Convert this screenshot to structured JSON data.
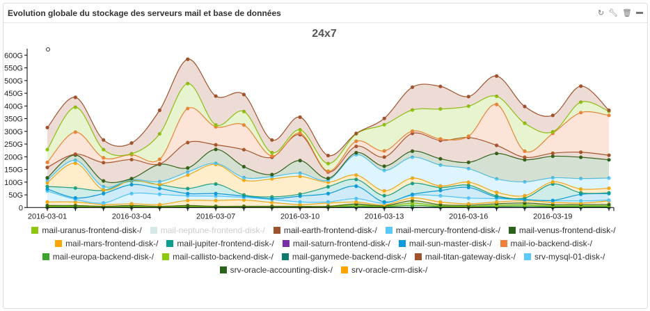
{
  "panel": {
    "title": "Evolution globale du stockage des serveurs mail et base de données",
    "icons": [
      "refresh-icon",
      "wrench-icon",
      "trash-icon",
      "minimize-icon"
    ]
  },
  "chart_data": {
    "type": "area",
    "stacked": true,
    "title": "24x7",
    "x": [
      "2016-03-01",
      "2016-03-02",
      "2016-03-03",
      "2016-03-04",
      "2016-03-05",
      "2016-03-06",
      "2016-03-07",
      "2016-03-08",
      "2016-03-09",
      "2016-03-10",
      "2016-03-11",
      "2016-03-12",
      "2016-03-13",
      "2016-03-14",
      "2016-03-15",
      "2016-03-16",
      "2016-03-17",
      "2016-03-18",
      "2016-03-19",
      "2016-03-20",
      "2016-03-21"
    ],
    "x_tick_labels": [
      "2016-03-01",
      "2016-03-04",
      "2016-03-07",
      "2016-03-10",
      "2016-03-13",
      "2016-03-16",
      "2016-03-19"
    ],
    "y_tick_labels": [
      "0",
      "50G",
      "100G",
      "150G",
      "200G",
      "250G",
      "300G",
      "350G",
      "400G",
      "450G",
      "500G",
      "550G",
      "600G"
    ],
    "ylim": [
      0,
      600
    ],
    "yunit": "G",
    "legend_position": "bottom",
    "series": [
      {
        "name": "mail-saturn-frontend-disk-/",
        "color": "#7b2fa5",
        "values": [
          0,
          0,
          0,
          0,
          0,
          0,
          0,
          0,
          0,
          0,
          0,
          0,
          0,
          0,
          0,
          0,
          0,
          0,
          0,
          0,
          0
        ]
      },
      {
        "name": "mail-ganymede-backend-disk-/",
        "color": "#0e7a6e",
        "values": [
          1,
          1,
          1,
          1,
          1,
          1,
          1,
          1,
          1,
          1,
          1,
          1,
          1,
          1,
          1,
          1,
          1,
          1,
          1,
          1,
          1
        ]
      },
      {
        "name": "mail-europa-backend-disk-/",
        "color": "#3aa52a",
        "values": [
          2,
          2,
          1,
          2,
          1,
          2,
          1,
          1,
          1,
          1,
          1,
          4,
          2,
          8,
          3,
          2,
          4,
          5,
          3,
          3,
          3
        ]
      },
      {
        "name": "mail-callisto-backend-disk-/",
        "color": "#8cc90b",
        "values": [
          2,
          2,
          1,
          2,
          1,
          2,
          1,
          1,
          1,
          1,
          1,
          4,
          2,
          8,
          3,
          2,
          4,
          5,
          3,
          3,
          3
        ]
      },
      {
        "name": "srv-oracle-accounting-disk-/",
        "color": "#2a6319",
        "values": [
          3,
          3,
          2,
          3,
          2,
          3,
          2,
          2,
          2,
          2,
          2,
          5,
          2,
          10,
          4,
          4,
          6,
          7,
          5,
          5,
          5
        ]
      },
      {
        "name": "srv-oracle-crm-disk-/",
        "color": "#ffa500",
        "values": [
          14,
          14,
          7,
          7,
          7,
          20,
          23,
          25,
          15,
          7,
          13,
          8,
          4,
          11,
          11,
          6,
          7,
          9,
          9,
          6,
          14
        ]
      },
      {
        "name": "srv-mysql-01-disk-/",
        "color": "#5ac8fa",
        "values": [
          43,
          10,
          6,
          40,
          40,
          18,
          17,
          10,
          12,
          10,
          4,
          13,
          7,
          10,
          24,
          22,
          13,
          3,
          6,
          8,
          3
        ]
      },
      {
        "name": "mail-sun-master-disk-/",
        "color": "#0f9ae0",
        "values": [
          8,
          6,
          37,
          35,
          23,
          9,
          10,
          5,
          3,
          23,
          33,
          49,
          4,
          4,
          21,
          42,
          6,
          2,
          1,
          26,
          26
        ]
      },
      {
        "name": "mail-jupiter-frontend-disk-/",
        "color": "#0a9e8e",
        "values": [
          10,
          39,
          13,
          15,
          15,
          20,
          38,
          5,
          7,
          8,
          27,
          27,
          25,
          43,
          12,
          9,
          5,
          6,
          65,
          6,
          3
        ]
      },
      {
        "name": "mail-mars-frontend-disk-/",
        "color": "#ffa500",
        "values": [
          15,
          98,
          2,
          3,
          2,
          53,
          77,
          58,
          71,
          70,
          18,
          17,
          19,
          21,
          6,
          12,
          14,
          9,
          8,
          15,
          18
        ]
      },
      {
        "name": "mail-mercury-frontend-disk-/",
        "color": "#5ac8fa",
        "values": [
          10,
          11,
          12,
          2,
          10,
          12,
          4,
          10,
          9,
          12,
          8,
          80,
          80,
          82,
          82,
          53,
          53,
          54,
          16,
          41,
          40
        ]
      },
      {
        "name": "mail-venus-frontend-disk-/",
        "color": "#2a6319",
        "values": [
          9,
          21,
          23,
          4,
          68,
          16,
          55,
          43,
          8,
          50,
          7,
          8,
          17,
          24,
          25,
          25,
          100,
          87,
          85,
          84,
          72
        ]
      },
      {
        "name": "mail-titan-gateway-disk-/",
        "color": "#a0522d",
        "values": [
          41,
          3,
          72,
          75,
          2,
          100,
          18,
          67,
          68,
          102,
          25,
          25,
          36,
          70,
          72,
          98,
          32,
          10,
          12,
          20,
          18
        ]
      },
      {
        "name": "mail-io-backend-disk-/",
        "color": "#f07e3a",
        "values": [
          20,
          87,
          19,
          19,
          18,
          134,
          71,
          97,
          5,
          6,
          3,
          20,
          24,
          9,
          6,
          5,
          161,
          24,
          78,
          156,
          157
        ]
      },
      {
        "name": "mail-uranus-frontend-disk-/",
        "color": "#8dc80f",
        "values": [
          50,
          98,
          32,
          4,
          100,
          98,
          7,
          53,
          13,
          13,
          30,
          29,
          103,
          83,
          118,
          118,
          32,
          110,
          6,
          41,
          16
        ]
      },
      {
        "name": "mail-earth-frontend-disk-/",
        "color": "#a0522d",
        "values": [
          87,
          39,
          38,
          42,
          93,
          96,
          114,
          67,
          50,
          50,
          32,
          2,
          25,
          90,
          89,
          38,
          80,
          66,
          65,
          63,
          4
        ]
      }
    ],
    "legend": [
      {
        "name": "mail-uranus-frontend-disk-/",
        "color": "#8dc80f"
      },
      {
        "name": "mail-neptune-frontend-disk-/",
        "color": "#d6e9e9",
        "disabled": true
      },
      {
        "name": "mail-earth-frontend-disk-/",
        "color": "#a0522d"
      },
      {
        "name": "mail-mercury-frontend-disk-/",
        "color": "#5ac8fa"
      },
      {
        "name": "mail-venus-frontend-disk-/",
        "color": "#2a6319"
      },
      {
        "name": "mail-mars-frontend-disk-/",
        "color": "#ffa500"
      },
      {
        "name": "mail-jupiter-frontend-disk-/",
        "color": "#0a9e8e"
      },
      {
        "name": "mail-saturn-frontend-disk-/",
        "color": "#7b2fa5"
      },
      {
        "name": "mail-sun-master-disk-/",
        "color": "#0f9ae0"
      },
      {
        "name": "mail-io-backend-disk-/",
        "color": "#f07e3a"
      },
      {
        "name": "mail-europa-backend-disk-/",
        "color": "#3aa52a"
      },
      {
        "name": "mail-callisto-backend-disk-/",
        "color": "#8cc90b"
      },
      {
        "name": "mail-ganymede-backend-disk-/",
        "color": "#0e7a6e"
      },
      {
        "name": "mail-titan-gateway-disk-/",
        "color": "#a0522d"
      },
      {
        "name": "srv-mysql-01-disk-/",
        "color": "#5ac8fa"
      },
      {
        "name": "srv-oracle-accounting-disk-/",
        "color": "#2a6319"
      },
      {
        "name": "srv-oracle-crm-disk-/",
        "color": "#ffa500"
      }
    ]
  }
}
